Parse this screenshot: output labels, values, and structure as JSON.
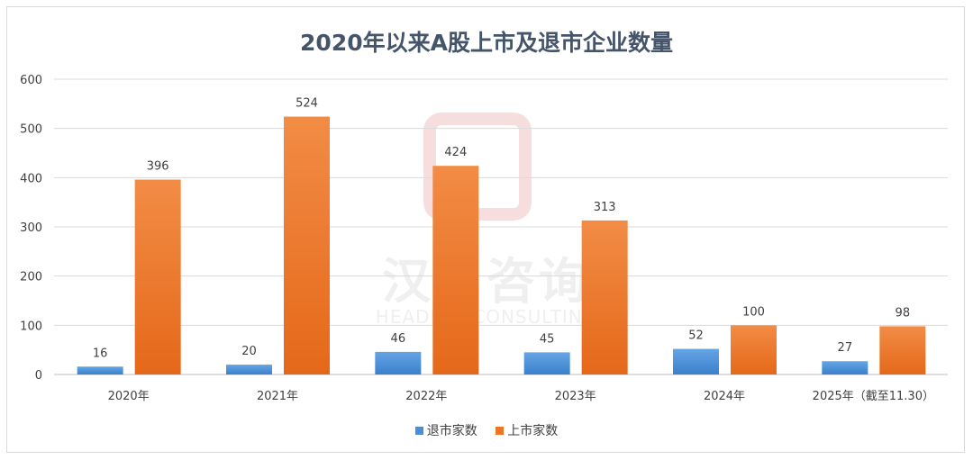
{
  "chart_data": {
    "type": "bar",
    "title": "2020年以来A股上市及退市企业数量",
    "categories": [
      "2020年",
      "2021年",
      "2022年",
      "2023年",
      "2024年",
      "2025年（截至11.30）"
    ],
    "series": [
      {
        "name": "退市家数",
        "color": "#4a8fd6",
        "values": [
          16,
          20,
          46,
          45,
          52,
          27
        ]
      },
      {
        "name": "上市家数",
        "color": "#ed7524",
        "values": [
          396,
          524,
          424,
          313,
          100,
          98
        ]
      }
    ],
    "ylim": [
      0,
      600
    ],
    "yticks": [
      0,
      100,
      200,
      300,
      400,
      500,
      600
    ],
    "grid": true,
    "legend_position": "bottom",
    "xlabel": "",
    "ylabel": ""
  },
  "watermark": {
    "cn": "汉鼎咨询",
    "en": "HEADING CONSULTING"
  }
}
